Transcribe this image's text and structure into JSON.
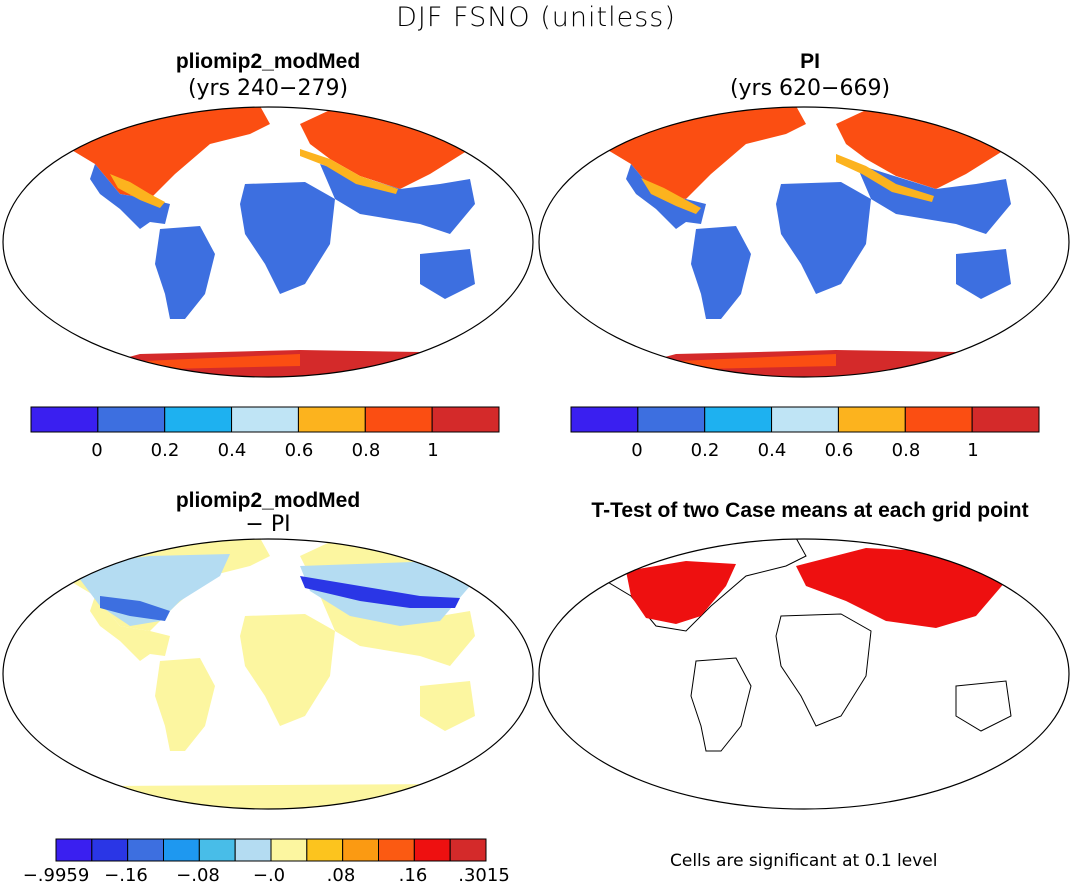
{
  "figure": {
    "title": "DJF FSNO (unitless)"
  },
  "panels": [
    {
      "id": "top-left",
      "title": "pliomip2_modMed",
      "subtitle": "(yrs 240−279)",
      "map": "snow fraction field"
    },
    {
      "id": "top-right",
      "title": "PI",
      "subtitle": "(yrs 620−669)",
      "map": "snow fraction field"
    },
    {
      "id": "bottom-left",
      "title": "pliomip2_modMed",
      "subtitle": "− PI",
      "map": "difference field"
    },
    {
      "id": "bottom-right",
      "title": "T-Test of two Case means at each grid point",
      "subtitle": "",
      "map": "significance mask"
    }
  ],
  "colorbars": {
    "main": {
      "colors": [
        "#3a1ff0",
        "#3d6fe0",
        "#1eb1f0",
        "#bfe4f5",
        "#fcb31e",
        "#fb4e12",
        "#d42a2a"
      ],
      "labels": [
        "0",
        "0.2",
        "0.4",
        "0.6",
        "0.8",
        "1"
      ]
    },
    "diff": {
      "colors": [
        "#3a1ff0",
        "#2a36e6",
        "#3d6fe0",
        "#1e98f0",
        "#48bde8",
        "#b4dcf2",
        "#fcf6a0",
        "#fcc41e",
        "#fb9a12",
        "#fb5a12",
        "#ee1010",
        "#d42a2a"
      ],
      "labels": [
        "−.9959",
        "−.16",
        "−.08",
        "−.0",
        ".08",
        ".16",
        ".3015"
      ]
    }
  },
  "notes": {
    "significance": "Cells are significant at 0.1 level"
  }
}
